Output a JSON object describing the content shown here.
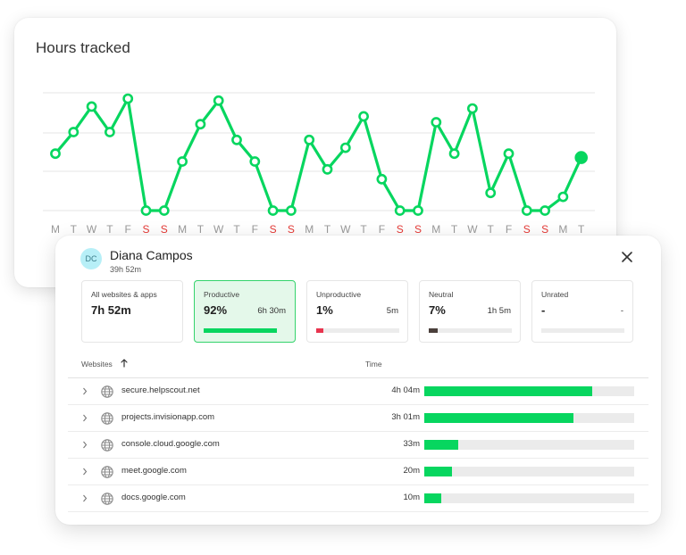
{
  "chart": {
    "title": "Hours tracked",
    "line_color": "#07d65f",
    "weekday_color": "#9a9a9a",
    "weekend_color": "#e53935"
  },
  "chart_data": {
    "type": "line",
    "title": "Hours tracked",
    "x": [
      "M",
      "T",
      "W",
      "T",
      "F",
      "S",
      "S",
      "M",
      "T",
      "W",
      "T",
      "F",
      "S",
      "S",
      "M",
      "T",
      "W",
      "T",
      "F",
      "S",
      "S",
      "M",
      "T",
      "W",
      "T",
      "F",
      "S",
      "S",
      "M",
      "T"
    ],
    "weekend": [
      false,
      false,
      false,
      false,
      false,
      true,
      true,
      false,
      false,
      false,
      false,
      false,
      true,
      true,
      false,
      false,
      false,
      false,
      false,
      true,
      true,
      false,
      false,
      false,
      false,
      false,
      true,
      true,
      false,
      false
    ],
    "series": [
      {
        "values": [
          2.9,
          4.0,
          5.3,
          4.0,
          5.7,
          0.0,
          0.0,
          2.5,
          4.4,
          5.6,
          3.6,
          2.5,
          0.0,
          0.0,
          3.6,
          2.1,
          3.2,
          4.8,
          1.6,
          0.0,
          0.0,
          4.5,
          2.9,
          5.2,
          0.9,
          2.9,
          0.0,
          0.0,
          0.7,
          2.7
        ]
      }
    ],
    "ylim": [
      0,
      6
    ],
    "grid": true
  },
  "user": {
    "initials": "DC",
    "name": "Diana Campos",
    "total": "39h 52m"
  },
  "stats": [
    {
      "label": "All websites & apps",
      "value": "7h 52m",
      "time": "",
      "fraction": null,
      "color": ""
    },
    {
      "label": "Productive",
      "value": "92%",
      "time": "6h 30m",
      "fraction": 0.88,
      "color": "#07d65f"
    },
    {
      "label": "Unproductive",
      "value": "1%",
      "time": "5m",
      "fraction": 0.09,
      "color": "#e8344e"
    },
    {
      "label": "Neutral",
      "value": "7%",
      "time": "1h 5m",
      "fraction": 0.11,
      "color": "#4a3f3b"
    },
    {
      "label": "Unrated",
      "value": "-",
      "time": "-",
      "fraction": 0.0,
      "color": ""
    }
  ],
  "table": {
    "col_websites": "Websites",
    "col_time": "Time",
    "rows": [
      {
        "site": "secure.helpscout.net",
        "time": "4h 04m",
        "fraction": 0.8
      },
      {
        "site": "projects.invisionapp.com",
        "time": "3h 01m",
        "fraction": 0.71
      },
      {
        "site": "console.cloud.google.com",
        "time": "33m",
        "fraction": 0.16
      },
      {
        "site": "meet.google.com",
        "time": "20m",
        "fraction": 0.13
      },
      {
        "site": "docs.google.com",
        "time": "10m",
        "fraction": 0.08
      }
    ]
  }
}
